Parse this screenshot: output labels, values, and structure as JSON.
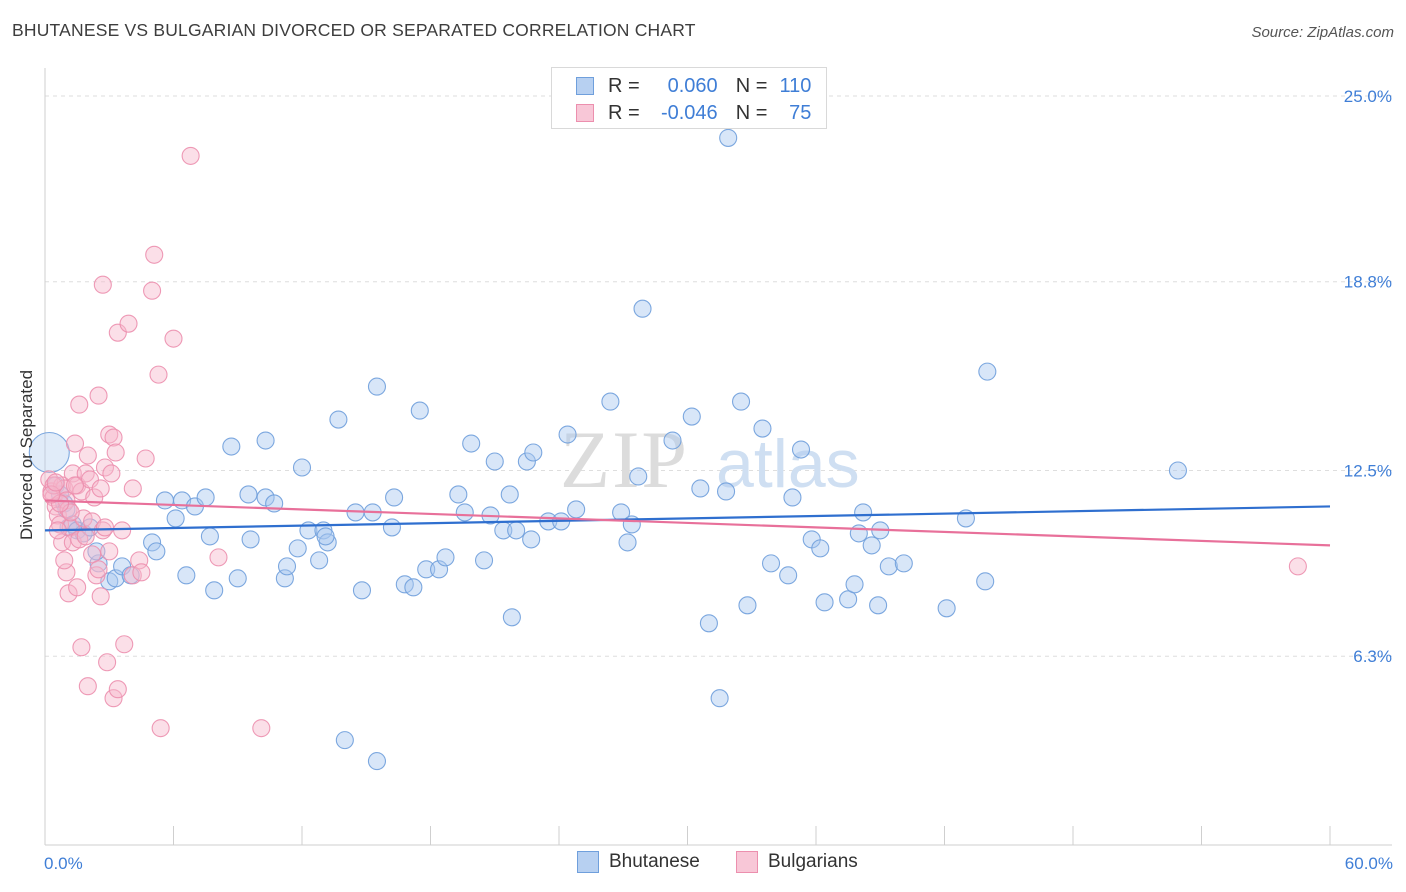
{
  "title": "BHUTANESE VS BULGARIAN DIVORCED OR SEPARATED CORRELATION CHART",
  "source": "Source: ZipAtlas.com",
  "watermark": {
    "zip": "ZIP",
    "atlas": "atlas"
  },
  "legend": {
    "rows": [
      {
        "r_label": "R =",
        "r_value": "0.060",
        "n_label": "N =",
        "n_value": "110"
      },
      {
        "r_label": "R =",
        "r_value": "-0.046",
        "n_label": "N =",
        "n_value": "75"
      }
    ]
  },
  "bottom_legend": [
    "Bhutanese",
    "Bulgarians"
  ],
  "colors": {
    "blue_fill": "#a9c8ef",
    "blue_stroke": "#6f9fdc",
    "blue_line": "#2f6fcf",
    "pink_fill": "#f6b9cd",
    "pink_stroke": "#ec8fae",
    "pink_line": "#e8709a",
    "tick_text": "#3f7ed6",
    "grid": "#dedede"
  },
  "chart_data": {
    "type": "scatter",
    "title": "BHUTANESE VS BULGARIAN DIVORCED OR SEPARATED CORRELATION CHART",
    "xlabel": "",
    "ylabel": "Divorced or Separated",
    "xlim": [
      0,
      60
    ],
    "ylim": [
      0,
      25.6
    ],
    "x_tick_labels": [
      "0.0%",
      "60.0%"
    ],
    "y_ticks": [
      6.3,
      12.5,
      18.8,
      25.0
    ],
    "y_tick_labels": [
      "6.3%",
      "12.5%",
      "18.8%",
      "25.0%"
    ],
    "legend_position": "top-center",
    "series": [
      {
        "name": "Bhutanese",
        "r": 0.06,
        "n": 110,
        "trend": {
          "x": [
            0,
            60
          ],
          "y": [
            10.5,
            11.3
          ]
        },
        "points": [
          [
            0.2,
            13.1
          ],
          [
            0.5,
            12.0
          ],
          [
            0.7,
            11.7
          ],
          [
            0.9,
            11.4
          ],
          [
            1.0,
            11.2
          ],
          [
            1.1,
            10.6
          ],
          [
            1.3,
            10.7
          ],
          [
            1.5,
            10.5
          ],
          [
            1.8,
            10.4
          ],
          [
            2.1,
            10.6
          ],
          [
            2.5,
            9.4
          ],
          [
            2.4,
            9.8
          ],
          [
            3.0,
            8.8
          ],
          [
            3.3,
            8.9
          ],
          [
            3.6,
            9.3
          ],
          [
            4.0,
            9.0
          ],
          [
            5.0,
            10.1
          ],
          [
            5.2,
            9.8
          ],
          [
            5.6,
            11.5
          ],
          [
            6.1,
            10.9
          ],
          [
            6.4,
            11.5
          ],
          [
            6.6,
            9.0
          ],
          [
            7.0,
            11.3
          ],
          [
            7.5,
            11.6
          ],
          [
            7.7,
            10.3
          ],
          [
            7.9,
            8.5
          ],
          [
            8.7,
            13.3
          ],
          [
            9.0,
            8.9
          ],
          [
            9.5,
            11.7
          ],
          [
            9.6,
            10.2
          ],
          [
            10.3,
            11.6
          ],
          [
            10.3,
            13.5
          ],
          [
            10.7,
            11.4
          ],
          [
            11.2,
            8.9
          ],
          [
            11.3,
            9.3
          ],
          [
            11.8,
            9.9
          ],
          [
            12.0,
            12.6
          ],
          [
            12.3,
            10.5
          ],
          [
            12.8,
            9.5
          ],
          [
            13.0,
            10.5
          ],
          [
            13.2,
            10.1
          ],
          [
            13.1,
            10.3
          ],
          [
            13.7,
            14.2
          ],
          [
            14.5,
            11.1
          ],
          [
            14.8,
            8.5
          ],
          [
            15.3,
            11.1
          ],
          [
            15.5,
            15.3
          ],
          [
            16.2,
            10.6
          ],
          [
            16.3,
            11.6
          ],
          [
            16.8,
            8.7
          ],
          [
            17.2,
            8.6
          ],
          [
            17.5,
            14.5
          ],
          [
            17.8,
            9.2
          ],
          [
            18.4,
            9.2
          ],
          [
            18.7,
            9.6
          ],
          [
            19.3,
            11.7
          ],
          [
            19.6,
            11.1
          ],
          [
            19.9,
            13.4
          ],
          [
            20.5,
            9.5
          ],
          [
            20.8,
            11.0
          ],
          [
            21.0,
            12.8
          ],
          [
            21.4,
            10.5
          ],
          [
            21.7,
            11.7
          ],
          [
            22.0,
            10.5
          ],
          [
            21.8,
            7.6
          ],
          [
            22.5,
            12.8
          ],
          [
            22.7,
            10.2
          ],
          [
            22.8,
            13.1
          ],
          [
            23.5,
            10.8
          ],
          [
            24.1,
            10.8
          ],
          [
            24.4,
            13.7
          ],
          [
            24.8,
            11.2
          ],
          [
            26.4,
            14.8
          ],
          [
            26.9,
            11.1
          ],
          [
            27.2,
            10.1
          ],
          [
            27.4,
            10.7
          ],
          [
            27.7,
            12.3
          ],
          [
            27.9,
            17.9
          ],
          [
            29.3,
            13.5
          ],
          [
            30.2,
            14.3
          ],
          [
            30.6,
            11.9
          ],
          [
            31.0,
            7.4
          ],
          [
            31.8,
            11.8
          ],
          [
            31.5,
            4.9
          ],
          [
            31.9,
            23.6
          ],
          [
            32.5,
            14.8
          ],
          [
            32.8,
            8.0
          ],
          [
            33.5,
            13.9
          ],
          [
            33.9,
            9.4
          ],
          [
            34.7,
            9.0
          ],
          [
            34.9,
            11.6
          ],
          [
            35.3,
            13.2
          ],
          [
            35.8,
            10.2
          ],
          [
            36.2,
            9.9
          ],
          [
            36.4,
            8.1
          ],
          [
            37.5,
            8.2
          ],
          [
            37.8,
            8.7
          ],
          [
            38.0,
            10.4
          ],
          [
            38.2,
            11.1
          ],
          [
            38.6,
            10.0
          ],
          [
            38.9,
            8.0
          ],
          [
            39.0,
            10.5
          ],
          [
            39.4,
            9.3
          ],
          [
            40.1,
            9.4
          ],
          [
            42.1,
            7.9
          ],
          [
            43.0,
            10.9
          ],
          [
            43.9,
            8.8
          ],
          [
            44.0,
            15.8
          ],
          [
            52.9,
            12.5
          ],
          [
            14.0,
            3.5
          ],
          [
            15.5,
            2.8
          ]
        ]
      },
      {
        "name": "Bulgarians",
        "r": -0.046,
        "n": 75,
        "trend": {
          "x": [
            0,
            60
          ],
          "y": [
            11.5,
            10.0
          ]
        },
        "points": [
          [
            0.2,
            12.2
          ],
          [
            0.3,
            11.8
          ],
          [
            0.4,
            11.6
          ],
          [
            0.5,
            11.3
          ],
          [
            0.6,
            11.0
          ],
          [
            0.7,
            10.7
          ],
          [
            0.8,
            12.0
          ],
          [
            0.9,
            11.9
          ],
          [
            1.0,
            11.5
          ],
          [
            1.1,
            11.2
          ],
          [
            1.2,
            10.6
          ],
          [
            1.3,
            12.4
          ],
          [
            1.4,
            13.4
          ],
          [
            1.5,
            12.0
          ],
          [
            1.6,
            14.7
          ],
          [
            1.7,
            11.8
          ],
          [
            1.8,
            10.9
          ],
          [
            1.9,
            12.4
          ],
          [
            2.0,
            13.0
          ],
          [
            2.1,
            12.2
          ],
          [
            2.2,
            10.8
          ],
          [
            2.3,
            11.6
          ],
          [
            2.5,
            15.0
          ],
          [
            2.6,
            11.9
          ],
          [
            2.7,
            10.5
          ],
          [
            2.8,
            12.6
          ],
          [
            3.0,
            13.7
          ],
          [
            3.1,
            12.4
          ],
          [
            3.2,
            13.6
          ],
          [
            3.3,
            13.1
          ],
          [
            3.4,
            17.1
          ],
          [
            3.6,
            10.5
          ],
          [
            3.9,
            17.4
          ],
          [
            4.1,
            11.9
          ],
          [
            4.4,
            9.5
          ],
          [
            4.7,
            12.9
          ],
          [
            5.0,
            18.5
          ],
          [
            5.1,
            19.7
          ],
          [
            5.3,
            15.7
          ],
          [
            6.0,
            16.9
          ],
          [
            6.8,
            23.0
          ],
          [
            2.7,
            18.7
          ],
          [
            0.8,
            10.1
          ],
          [
            1.0,
            9.1
          ],
          [
            1.1,
            8.4
          ],
          [
            1.3,
            10.1
          ],
          [
            1.5,
            8.6
          ],
          [
            1.7,
            6.6
          ],
          [
            2.0,
            5.3
          ],
          [
            2.4,
            9.0
          ],
          [
            2.6,
            8.3
          ],
          [
            2.9,
            6.1
          ],
          [
            3.2,
            4.9
          ],
          [
            3.7,
            6.7
          ],
          [
            4.1,
            9.0
          ],
          [
            5.4,
            3.9
          ],
          [
            8.1,
            9.6
          ],
          [
            10.1,
            3.9
          ],
          [
            0.9,
            9.5
          ],
          [
            1.6,
            10.2
          ],
          [
            2.2,
            9.7
          ],
          [
            2.5,
            9.2
          ],
          [
            3.4,
            5.2
          ],
          [
            0.6,
            10.5
          ],
          [
            1.2,
            11.1
          ],
          [
            0.4,
            12.0
          ],
          [
            0.7,
            11.4
          ],
          [
            1.9,
            10.3
          ],
          [
            2.8,
            10.6
          ],
          [
            3.0,
            9.8
          ],
          [
            0.3,
            11.7
          ],
          [
            0.5,
            12.1
          ],
          [
            1.4,
            12.0
          ],
          [
            58.5,
            9.3
          ],
          [
            4.5,
            9.1
          ]
        ]
      }
    ]
  }
}
